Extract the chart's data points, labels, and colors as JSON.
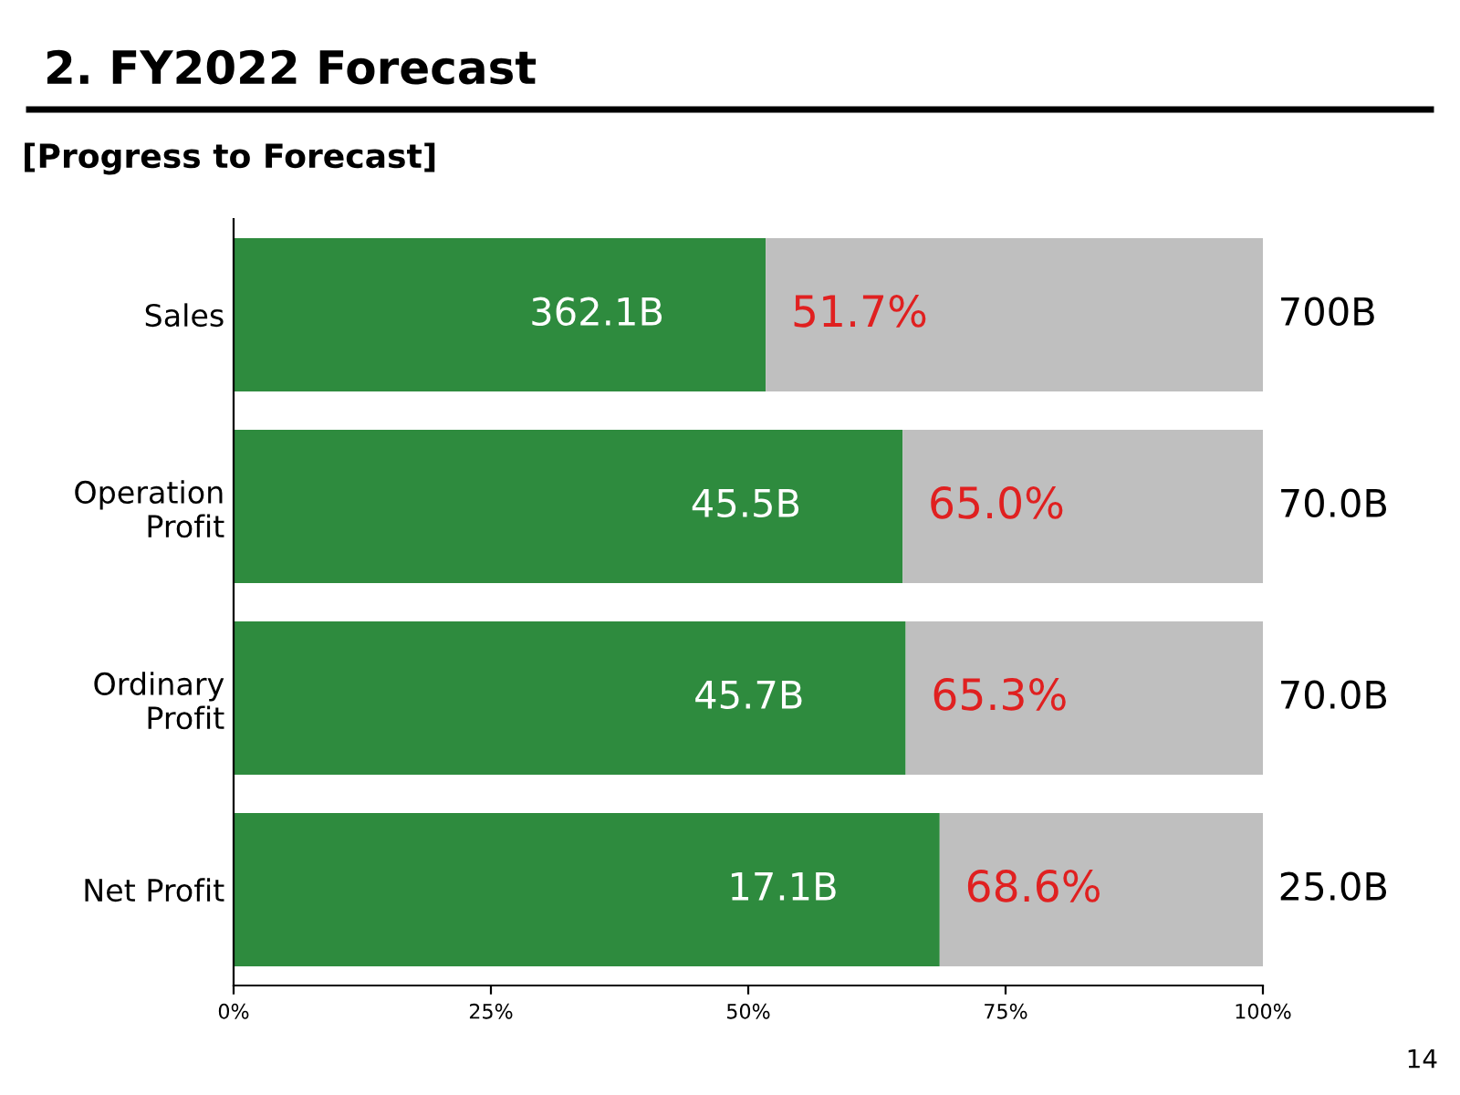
{
  "chart_data": {
    "type": "bar",
    "orientation": "horizontal",
    "stacked": true,
    "title": "2. FY2022 Forecast",
    "subtitle": "[Progress to Forecast]",
    "categories": [
      "Sales",
      "Operation\nProfit",
      "Ordinary\nProfit",
      "Net Profit"
    ],
    "series": [
      {
        "color": "#2e8b3e",
        "values": [
          51.7,
          65.0,
          65.3,
          68.6
        ]
      },
      {
        "color": "#bfbfbf",
        "values": [
          48.3,
          35.0,
          34.7,
          31.4
        ]
      }
    ],
    "annotations": [
      {
        "text": "362.1B",
        "x": 51.7,
        "y": "Sales"
      },
      {
        "text": "45.5B",
        "x": 65.0,
        "y": "Operation\nProfit"
      },
      {
        "text": "45.7B",
        "x": 65.3,
        "y": "Ordinary\nProfit"
      },
      {
        "text": "17.1B",
        "x": 68.6,
        "y": "Net Profit"
      },
      {
        "text": "700B",
        "x": 100,
        "y": "Sales"
      },
      {
        "text": "70.0B",
        "x": 100,
        "y": "Operation\nProfit"
      },
      {
        "text": "70.0B",
        "x": 100,
        "y": "Ordinary\nProfit"
      },
      {
        "text": "25.0B",
        "x": 100,
        "y": "Net Profit"
      },
      {
        "text": "51.7%",
        "x": 51.7,
        "y": "Sales"
      },
      {
        "text": "65.0%",
        "x": 65.0,
        "y": "Operation\nProfit"
      },
      {
        "text": "65.3%",
        "x": 65.3,
        "y": "Ordinary\nProfit"
      },
      {
        "text": "68.6%",
        "x": 68.6,
        "y": "Net Profit"
      },
      "14"
    ],
    "xlim": [
      0,
      100
    ],
    "xticks": [
      {
        "value": 0,
        "label": "0%"
      },
      {
        "value": 25,
        "label": "25%"
      },
      {
        "value": 50,
        "label": "50%"
      },
      {
        "value": 75,
        "label": "75%"
      },
      {
        "value": 100,
        "label": "100%"
      }
    ],
    "grid": false,
    "legend": false
  }
}
